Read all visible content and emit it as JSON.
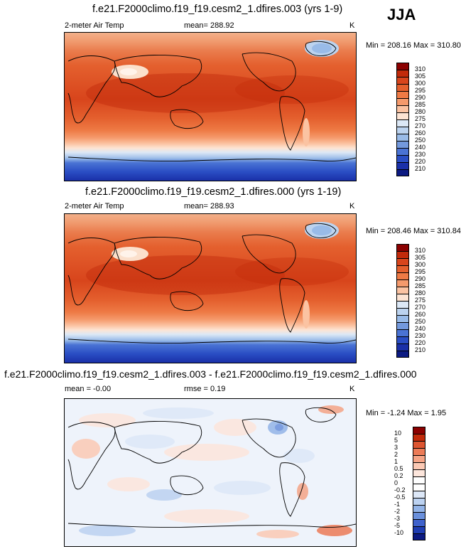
{
  "season": "JJA",
  "panels": [
    {
      "title": "f.e21.F2000climo.f19_f19.cesm2_1.dfires.003 (yrs 1-9)",
      "variable": "2-meter Air Temp",
      "mean": "mean= 288.92",
      "units": "K",
      "minmax": "Min = 208.16 Max = 310.80"
    },
    {
      "title": "f.e21.F2000climo.f19_f19.cesm2_1.dfires.000 (yrs 1-19)",
      "variable": "2-meter Air Temp",
      "mean": "mean= 288.93",
      "units": "K",
      "minmax": "Min = 208.46 Max = 310.84"
    },
    {
      "title": "f.e21.F2000climo.f19_f19.cesm2_1.dfires.003 - f.e21.F2000climo.f19_f19.cesm2_1.dfires.000",
      "mean": "mean =  -0.00",
      "rmse": "rmse =  0.19",
      "units": "K",
      "minmax": "Min =  -1.24 Max =   1.95"
    }
  ],
  "chart_data": [
    {
      "type": "heatmap",
      "title": "f.e21.F2000climo.f19_f19.cesm2_1.dfires.003 (yrs 1-9)",
      "variable": "2-meter Air Temp",
      "units": "K",
      "mean": 288.92,
      "min": 208.16,
      "max": 310.8,
      "colorbar_levels": [
        310,
        305,
        300,
        295,
        290,
        285,
        280,
        275,
        270,
        260,
        250,
        240,
        230,
        220,
        210
      ],
      "colorbar_colors": [
        "#8b0000",
        "#c22a0a",
        "#d8451c",
        "#e4602e",
        "#ee7a45",
        "#f59a6c",
        "#fbc3a2",
        "#fde4d3",
        "#dce8f6",
        "#bcd3ef",
        "#99bbe8",
        "#7399dd",
        "#4a73d4",
        "#2a4ec4",
        "#1a30a8",
        "#0c1a82"
      ]
    },
    {
      "type": "heatmap",
      "title": "f.e21.F2000climo.f19_f19.cesm2_1.dfires.000 (yrs 1-19)",
      "variable": "2-meter Air Temp",
      "units": "K",
      "mean": 288.93,
      "min": 208.46,
      "max": 310.84,
      "colorbar_levels": [
        310,
        305,
        300,
        295,
        290,
        285,
        280,
        275,
        270,
        260,
        250,
        240,
        230,
        220,
        210
      ],
      "colorbar_colors": [
        "#8b0000",
        "#c22a0a",
        "#d8451c",
        "#e4602e",
        "#ee7a45",
        "#f59a6c",
        "#fbc3a2",
        "#fde4d3",
        "#dce8f6",
        "#bcd3ef",
        "#99bbe8",
        "#7399dd",
        "#4a73d4",
        "#2a4ec4",
        "#1a30a8",
        "#0c1a82"
      ]
    },
    {
      "type": "heatmap",
      "title": "f.e21.F2000climo.f19_f19.cesm2_1.dfires.003 - f.e21.F2000climo.f19_f19.cesm2_1.dfires.000",
      "units": "K",
      "mean": -0.0,
      "rmse": 0.19,
      "min": -1.24,
      "max": 1.95,
      "colorbar_levels": [
        "10",
        "5",
        "3",
        "2",
        "1",
        "0.5",
        "0.2",
        "0",
        "-0.2",
        "-0.5",
        "-1",
        "-2",
        "-3",
        "-5",
        "-10"
      ],
      "colorbar_colors": [
        "#8b0000",
        "#c22a0a",
        "#dd5530",
        "#ec7b57",
        "#f5a486",
        "#fbc9b4",
        "#fde6dc",
        "#ffffff",
        "#ffffff",
        "#dde8f8",
        "#bcd2f1",
        "#93b4e8",
        "#6a90dc",
        "#3f62cc",
        "#1f3db2",
        "#0c1a82"
      ]
    }
  ]
}
